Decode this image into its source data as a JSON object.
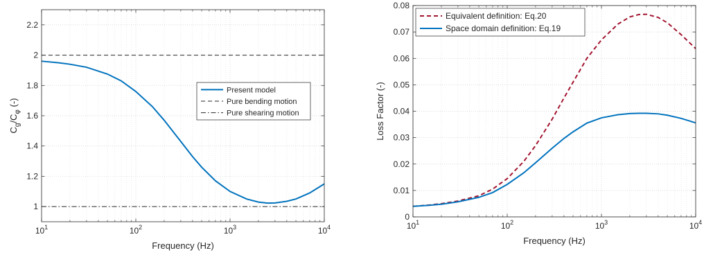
{
  "chart_data": [
    {
      "type": "line",
      "xlabel": "Frequency (Hz)",
      "ylabel_main": "C",
      "ylabel_sub1": "g",
      "ylabel_mid": "/C",
      "ylabel_sub2": "φ",
      "ylabel_tail": " (-)",
      "xscale": "log",
      "xlim": [
        10,
        10000
      ],
      "ylim": [
        0.9,
        2.3
      ],
      "xticks": [
        10,
        100,
        1000,
        10000
      ],
      "xtick_labels": [
        {
          "base": "10",
          "exp": "1"
        },
        {
          "base": "10",
          "exp": "2"
        },
        {
          "base": "10",
          "exp": "3"
        },
        {
          "base": "10",
          "exp": "4"
        }
      ],
      "yticks": [
        1,
        1.2,
        1.4,
        1.6,
        1.8,
        2,
        2.2
      ],
      "ytick_labels": [
        "1",
        "1.2",
        "1.4",
        "1.6",
        "1.8",
        "2",
        "2.2"
      ],
      "grid": true,
      "legend_position": "center-right",
      "series": [
        {
          "name": "Present model",
          "style": "solid",
          "color": "#0072bd",
          "x": [
            10,
            15,
            20,
            30,
            50,
            70,
            100,
            150,
            200,
            300,
            400,
            500,
            700,
            1000,
            1500,
            2000,
            2500,
            3000,
            4000,
            5000,
            7000,
            10000
          ],
          "y": [
            1.96,
            1.95,
            1.94,
            1.92,
            1.875,
            1.83,
            1.76,
            1.66,
            1.57,
            1.43,
            1.33,
            1.26,
            1.17,
            1.1,
            1.05,
            1.03,
            1.023,
            1.024,
            1.035,
            1.05,
            1.09,
            1.15
          ]
        },
        {
          "name": "Pure bending motion",
          "style": "dashed",
          "color": "#262626",
          "x": [
            10,
            10000
          ],
          "y": [
            2,
            2
          ]
        },
        {
          "name": "Pure shearing motion",
          "style": "dashdot",
          "color": "#262626",
          "x": [
            10,
            10000
          ],
          "y": [
            1,
            1
          ]
        }
      ]
    },
    {
      "type": "line",
      "xlabel": "Frequency (Hz)",
      "ylabel": "Loss Factor (-)",
      "xscale": "log",
      "xlim": [
        10,
        10000
      ],
      "ylim": [
        0,
        0.08
      ],
      "xticks": [
        10,
        100,
        1000,
        10000
      ],
      "xtick_labels": [
        {
          "base": "10",
          "exp": "1"
        },
        {
          "base": "10",
          "exp": "2"
        },
        {
          "base": "10",
          "exp": "3"
        },
        {
          "base": "10",
          "exp": "4"
        }
      ],
      "yticks": [
        0,
        0.01,
        0.02,
        0.03,
        0.04,
        0.05,
        0.06,
        0.07,
        0.08
      ],
      "ytick_labels": [
        "0",
        "0.01",
        "0.02",
        "0.03",
        "0.04",
        "0.05",
        "0.06",
        "0.07",
        "0.08"
      ],
      "grid": true,
      "legend_position": "top-left",
      "series": [
        {
          "name": "Equivalent definition: Eq.20",
          "style": "dashed",
          "color": "#a2142f",
          "x": [
            10,
            15,
            20,
            30,
            50,
            70,
            100,
            150,
            200,
            300,
            400,
            500,
            700,
            1000,
            1500,
            2000,
            2500,
            3000,
            4000,
            5000,
            7000,
            10000
          ],
          "y": [
            0.004,
            0.0045,
            0.005,
            0.006,
            0.008,
            0.0105,
            0.0145,
            0.021,
            0.027,
            0.037,
            0.045,
            0.051,
            0.06,
            0.067,
            0.073,
            0.0757,
            0.0766,
            0.0767,
            0.0755,
            0.0735,
            0.069,
            0.0637
          ]
        },
        {
          "name": "Space domain definition: Eq.19",
          "style": "solid",
          "color": "#0072bd",
          "x": [
            10,
            15,
            20,
            30,
            50,
            70,
            100,
            150,
            200,
            300,
            400,
            500,
            700,
            1000,
            1500,
            2000,
            2500,
            3000,
            4000,
            5000,
            7000,
            10000
          ],
          "y": [
            0.004,
            0.0044,
            0.0048,
            0.0057,
            0.0074,
            0.0092,
            0.0123,
            0.0167,
            0.0205,
            0.026,
            0.0297,
            0.0322,
            0.0355,
            0.0375,
            0.0387,
            0.0391,
            0.0392,
            0.0392,
            0.039,
            0.0385,
            0.0373,
            0.0356
          ]
        }
      ]
    }
  ]
}
